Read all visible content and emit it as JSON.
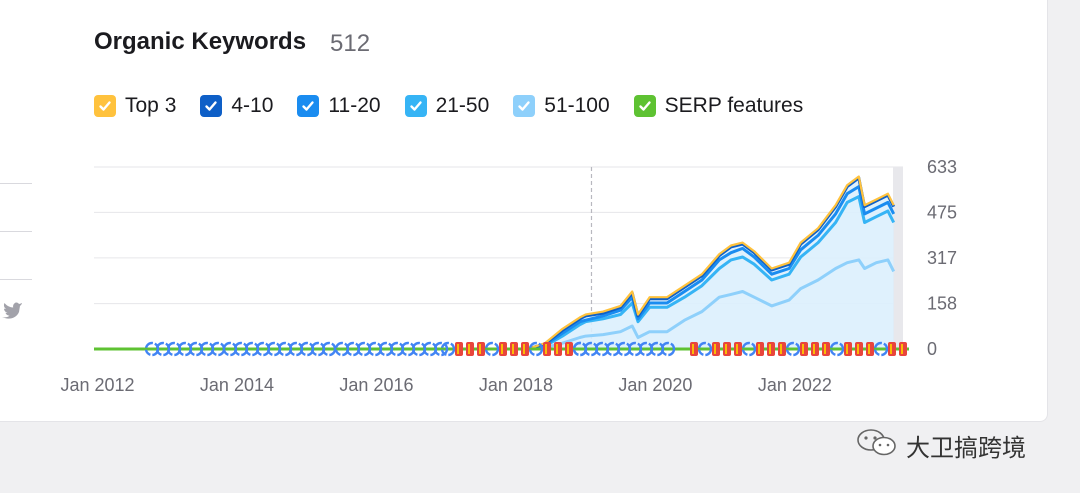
{
  "header": {
    "title": "Organic Keywords",
    "count": "512"
  },
  "legend": [
    {
      "label": "Top 3",
      "color": "#ffc23d"
    },
    {
      "label": "4-10",
      "color": "#0e5fc7"
    },
    {
      "label": "11-20",
      "color": "#1a8cf0"
    },
    {
      "label": "21-50",
      "color": "#36b4f5"
    },
    {
      "label": "51-100",
      "color": "#8ed0fb"
    },
    {
      "label": "SERP features",
      "color": "#5ec232"
    }
  ],
  "watermark": {
    "text": "大卫搞跨境"
  },
  "chart_data": {
    "type": "area",
    "x_labels": [
      "Jan 2012",
      "Jan 2014",
      "Jan 2016",
      "Jan 2018",
      "Jan 2020",
      "Jan 2022"
    ],
    "y_ticks": [
      633,
      475,
      317,
      158,
      0
    ],
    "ylim": [
      0,
      633
    ],
    "grid": true,
    "annotation_date": "2019-02",
    "x": [
      "2018-03",
      "2018-06",
      "2018-09",
      "2018-12",
      "2019-01",
      "2019-04",
      "2019-07",
      "2019-09",
      "2019-10",
      "2019-12",
      "2020-03",
      "2020-06",
      "2020-09",
      "2020-12",
      "2021-02",
      "2021-04",
      "2021-06",
      "2021-09",
      "2021-12",
      "2022-02",
      "2022-05",
      "2022-08",
      "2022-10",
      "2022-12",
      "2023-01",
      "2023-03",
      "2023-05",
      "2023-06"
    ],
    "series": [
      {
        "name": "Top 3",
        "values": [
          0,
          20,
          70,
          110,
          120,
          130,
          150,
          200,
          120,
          180,
          180,
          220,
          260,
          330,
          360,
          370,
          340,
          280,
          300,
          370,
          420,
          500,
          570,
          600,
          500,
          520,
          540,
          500
        ]
      },
      {
        "name": "4-10",
        "values": [
          0,
          18,
          65,
          105,
          115,
          125,
          145,
          195,
          115,
          175,
          175,
          215,
          255,
          325,
          355,
          365,
          335,
          275,
          295,
          365,
          415,
          495,
          565,
          595,
          495,
          515,
          535,
          495
        ]
      },
      {
        "name": "11-20",
        "values": [
          0,
          14,
          55,
          95,
          100,
          115,
          135,
          180,
          105,
          160,
          160,
          200,
          240,
          310,
          335,
          350,
          320,
          260,
          280,
          345,
          395,
          470,
          540,
          565,
          470,
          490,
          510,
          470
        ]
      },
      {
        "name": "21-50",
        "values": [
          0,
          10,
          45,
          85,
          95,
          105,
          120,
          160,
          95,
          145,
          145,
          180,
          220,
          280,
          310,
          320,
          295,
          240,
          260,
          320,
          370,
          440,
          510,
          530,
          440,
          460,
          480,
          440
        ]
      },
      {
        "name": "51-100",
        "values": [
          0,
          5,
          20,
          40,
          45,
          50,
          60,
          80,
          40,
          60,
          60,
          100,
          130,
          180,
          190,
          200,
          180,
          150,
          170,
          210,
          240,
          280,
          300,
          310,
          280,
          300,
          310,
          270
        ]
      }
    ],
    "serp_features": "line at 0 with Google feature markers",
    "colors": {
      "grid": "#e6e6ea",
      "axis_text": "#6b6b73",
      "fill": "#dbeffd"
    }
  }
}
